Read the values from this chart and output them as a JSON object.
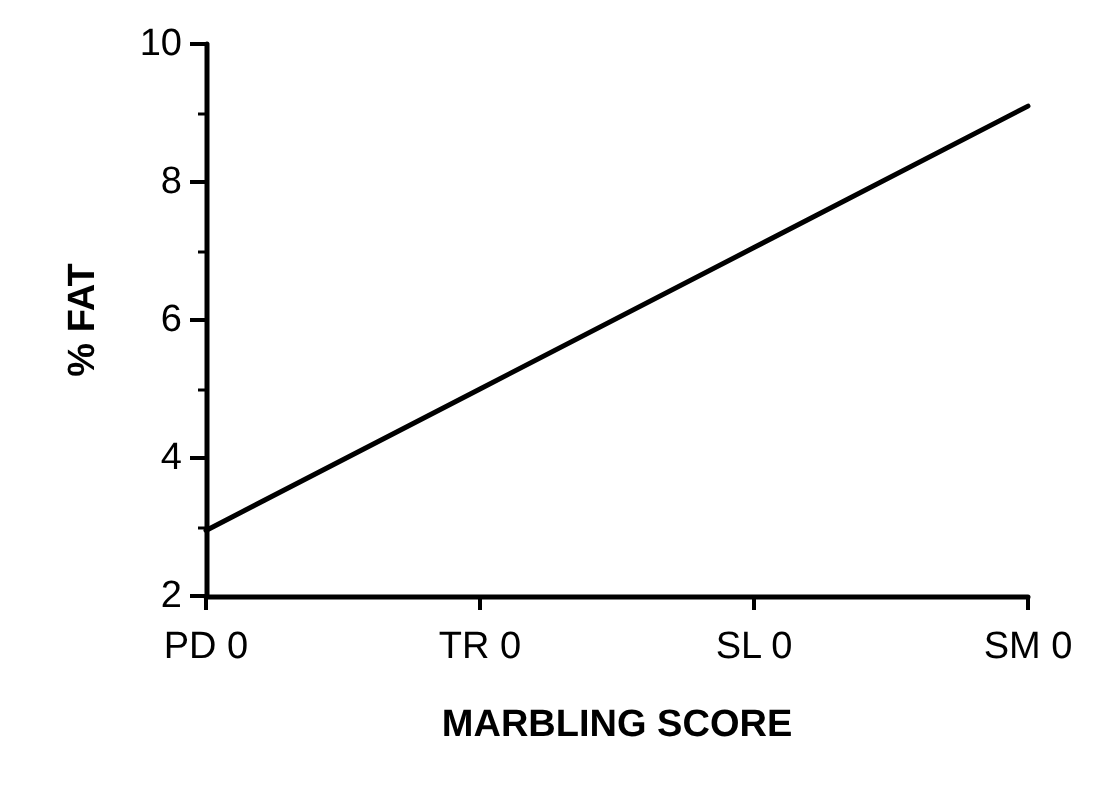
{
  "chart_data": {
    "type": "line",
    "xlabel": "MARBLING SCORE",
    "ylabel": "% FAT",
    "categories": [
      "PD 0",
      "TR 0",
      "SL 0",
      "SM 0"
    ],
    "series": [
      {
        "color": "#000000",
        "values": [
          2.95,
          5.0,
          7.05,
          9.1
        ]
      }
    ],
    "ylim": [
      2,
      10
    ],
    "yticks": [
      2,
      4,
      6,
      8,
      10
    ],
    "grid": false,
    "marker": "none",
    "line_style": "solid"
  }
}
